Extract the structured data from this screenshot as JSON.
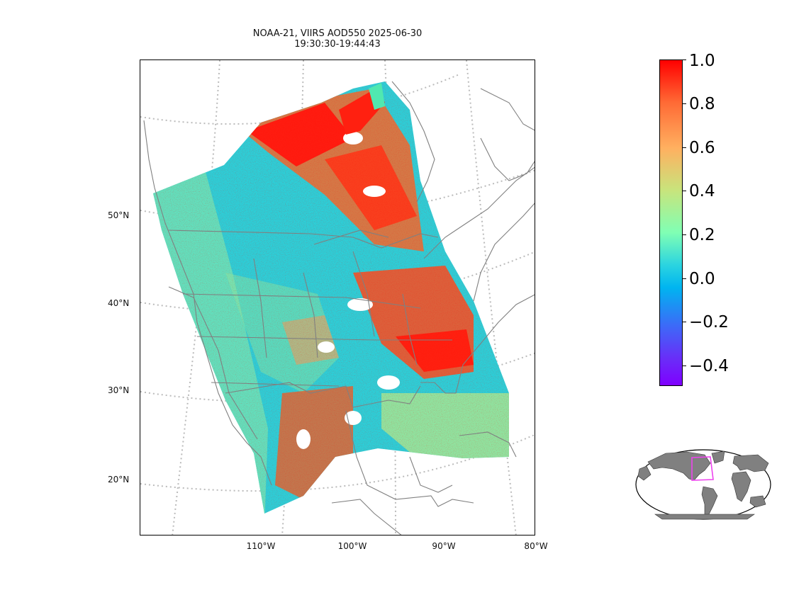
{
  "title": {
    "line1": "NOAA-21, VIIRS AOD550 2025-06-30",
    "line2": "19:30:30-19:44:43"
  },
  "map": {
    "lat_labels": [
      "50°N",
      "40°N",
      "30°N",
      "20°N"
    ],
    "lon_labels": [
      "110°W",
      "100°W",
      "90°W",
      "80°W"
    ],
    "coastline_color": "#808080",
    "graticule_color": "#bbbbbb"
  },
  "colorbar": {
    "ticks": [
      "1.0",
      "0.8",
      "0.6",
      "0.4",
      "0.2",
      "0.0",
      "−0.2",
      "−0.4"
    ],
    "min": -0.5,
    "max": 1.0,
    "colormap": "rainbow"
  },
  "inset": {
    "land_color": "#808080",
    "ocean_color": "#ffffff",
    "region_color": "#ee44ee"
  }
}
